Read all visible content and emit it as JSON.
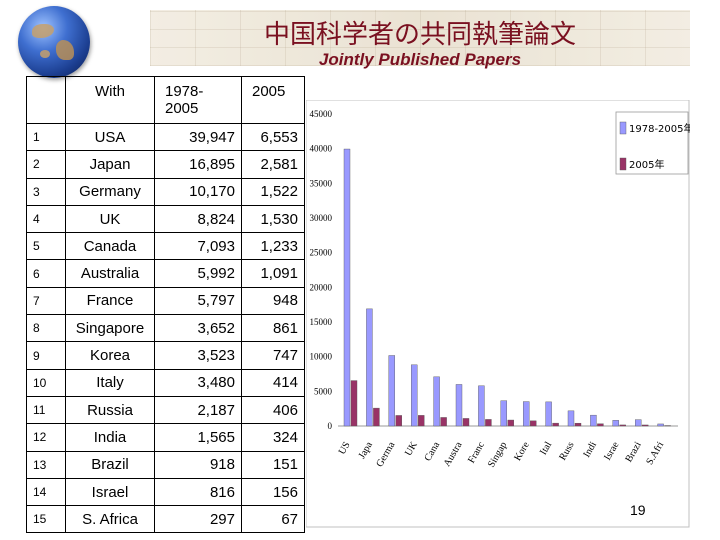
{
  "header": {
    "title_jp": "中国科学者の共同執筆論文",
    "title_en": "Jointly Published Papers"
  },
  "table": {
    "headers": {
      "rank": "",
      "country": "With",
      "v1": "1978-2005",
      "v2": "2005"
    },
    "rows": [
      {
        "rank": "1",
        "country": "USA",
        "v1": "39,947",
        "v2": "6,553"
      },
      {
        "rank": "2",
        "country": "Japan",
        "v1": "16,895",
        "v2": "2,581"
      },
      {
        "rank": "3",
        "country": "Germany",
        "v1": "10,170",
        "v2": "1,522"
      },
      {
        "rank": "4",
        "country": "UK",
        "v1": "8,824",
        "v2": "1,530"
      },
      {
        "rank": "5",
        "country": "Canada",
        "v1": "7,093",
        "v2": "1,233"
      },
      {
        "rank": "6",
        "country": "Australia",
        "v1": "5,992",
        "v2": "1,091"
      },
      {
        "rank": "7",
        "country": "France",
        "v1": "5,797",
        "v2": "948"
      },
      {
        "rank": "8",
        "country": "Singapore",
        "v1": "3,652",
        "v2": "861"
      },
      {
        "rank": "9",
        "country": "Korea",
        "v1": "3,523",
        "v2": "747"
      },
      {
        "rank": "10",
        "country": "Italy",
        "v1": "3,480",
        "v2": "414"
      },
      {
        "rank": "11",
        "country": "Russia",
        "v1": "2,187",
        "v2": "406"
      },
      {
        "rank": "12",
        "country": "India",
        "v1": "1,565",
        "v2": "324"
      },
      {
        "rank": "13",
        "country": "Brazil",
        "v1": "918",
        "v2": "151"
      },
      {
        "rank": "14",
        "country": "Israel",
        "v1": "816",
        "v2": "156"
      },
      {
        "rank": "15",
        "country": "S. Africa",
        "v1": "297",
        "v2": "67"
      }
    ]
  },
  "chart_data": {
    "type": "bar",
    "categories": [
      "US",
      "Japan",
      "Germany",
      "UK",
      "Canada",
      "Australia",
      "France",
      "Singapore",
      "Korea",
      "Italy",
      "Russia",
      "India",
      "Israel",
      "Brazil",
      "S.Africa"
    ],
    "category_labels": [
      "US",
      "Japa",
      "Germa",
      "UK",
      "Cana",
      "Austra",
      "Franc",
      "Singap",
      "Kore",
      "Ital",
      "Russ",
      "Indi",
      "Israe",
      "Brazi",
      "S.Afri"
    ],
    "series": [
      {
        "name": "1978-2005年",
        "color": "#9999ff",
        "values": [
          39947,
          16895,
          10170,
          8824,
          7093,
          5992,
          5797,
          3652,
          3523,
          3480,
          2187,
          1565,
          816,
          918,
          297
        ]
      },
      {
        "name": "2005年",
        "color": "#993366",
        "values": [
          6553,
          2581,
          1522,
          1530,
          1233,
          1091,
          948,
          861,
          747,
          414,
          406,
          324,
          156,
          151,
          67
        ]
      }
    ],
    "ylim": [
      0,
      45000
    ],
    "yticks": [
      "0",
      "5000",
      "10000",
      "15000",
      "20000",
      "25000",
      "30000",
      "35000",
      "40000",
      "45000"
    ],
    "grid": false,
    "legend_position": "top-right"
  },
  "footer": {
    "slide_number": "19"
  }
}
